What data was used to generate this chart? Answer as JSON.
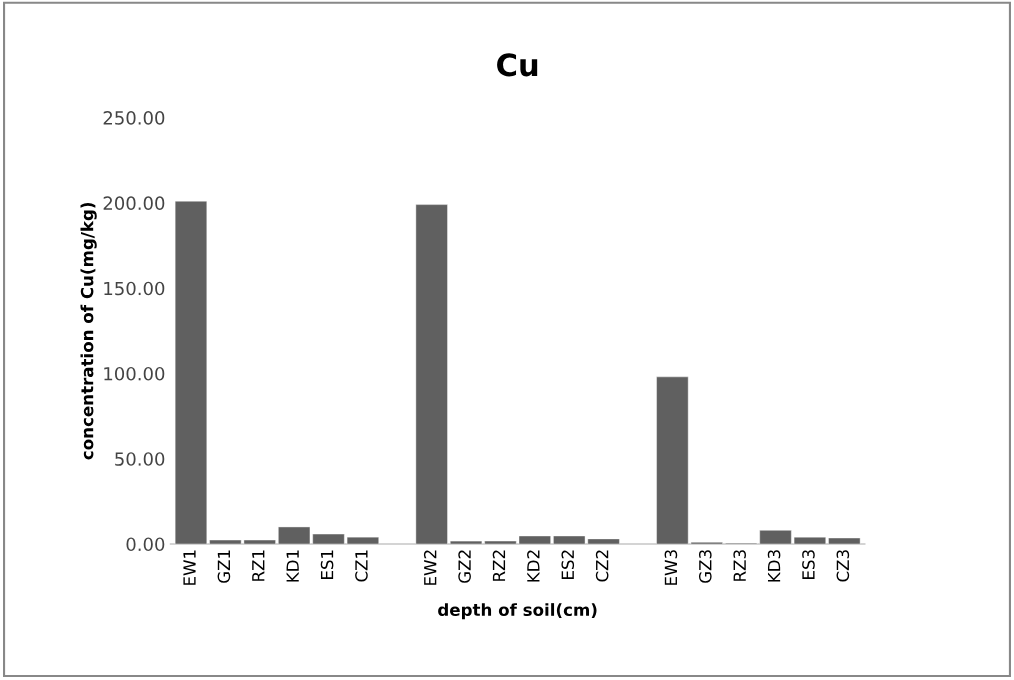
{
  "chart_data": {
    "type": "bar",
    "title": "Cu",
    "xlabel": "depth of soil(cm)",
    "ylabel": "concentration of Cu(mg/kg)",
    "categories": [
      "EW1",
      "GZ1",
      "RZ1",
      "KD1",
      "ES1",
      "CZ1",
      null,
      "EW2",
      "GZ2",
      "RZ2",
      "KD2",
      "ES2",
      "CZ2",
      null,
      "EW3",
      "GZ3",
      "RZ3",
      "KD3",
      "ES3",
      "CZ3"
    ],
    "values": [
      201,
      2.3,
      2.3,
      10,
      5.8,
      4,
      null,
      199,
      1.7,
      1.7,
      4.7,
      4.7,
      3,
      null,
      98,
      1,
      0.5,
      8,
      4,
      3.5
    ],
    "color": "#606060",
    "ylim": [
      0,
      250
    ],
    "yticks": [
      {
        "value": 0,
        "label": "0.00"
      },
      {
        "value": 50,
        "label": "50.00"
      },
      {
        "value": 100,
        "label": "100.00"
      },
      {
        "value": 150,
        "label": "150.00"
      },
      {
        "value": 200,
        "label": "200.00"
      },
      {
        "value": 250,
        "label": "250.00"
      }
    ],
    "grid": false,
    "legend": false
  }
}
